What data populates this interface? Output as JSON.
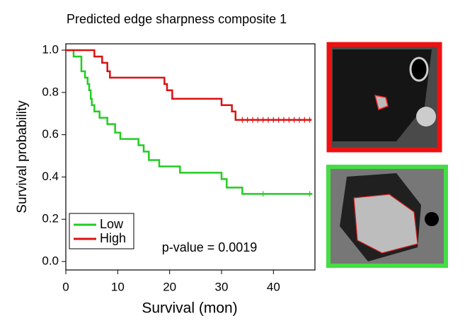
{
  "chart_data": {
    "type": "step",
    "title": "Predicted edge sharpness composite 1",
    "x_label": "Survival (mon)",
    "y_label": "Survival probability",
    "annotation": "p-value = 0.0019",
    "xlim": [
      0,
      48
    ],
    "ylim": [
      -0.04,
      1.03
    ],
    "xticks": [
      0,
      10,
      20,
      30,
      40
    ],
    "yticks": [
      {
        "value": 0,
        "label": "0.0"
      },
      0.2,
      0.4,
      0.6,
      0.8,
      {
        "value": 1,
        "label": "1.0"
      }
    ],
    "legend": "lower left",
    "series": [
      {
        "name": "Low",
        "color": "#22cc22",
        "x": [
          0,
          1.5,
          3,
          3.7,
          4.2,
          4.5,
          4.8,
          5,
          5.5,
          6.5,
          8,
          9.5,
          10.5,
          14,
          15,
          16,
          18,
          22,
          30,
          31,
          34,
          47.5
        ],
        "values": [
          1.0,
          0.97,
          0.9,
          0.87,
          0.84,
          0.81,
          0.77,
          0.74,
          0.71,
          0.68,
          0.65,
          0.61,
          0.58,
          0.55,
          0.52,
          0.48,
          0.45,
          0.42,
          0.39,
          0.35,
          0.32,
          0.32
        ],
        "censored": [
          38,
          47
        ]
      },
      {
        "name": "High",
        "color": "#dd1111",
        "x": [
          0,
          5.5,
          7,
          8,
          8.5,
          19,
          19.5,
          20.5,
          30,
          32,
          32.7,
          47.3
        ],
        "values": [
          1.0,
          0.97,
          0.94,
          0.9,
          0.87,
          0.84,
          0.81,
          0.77,
          0.74,
          0.71,
          0.67,
          0.67
        ],
        "censored": [
          34,
          35,
          36,
          37,
          38,
          39,
          40,
          41,
          42,
          43,
          44,
          45,
          46,
          47
        ]
      }
    ]
  }
}
